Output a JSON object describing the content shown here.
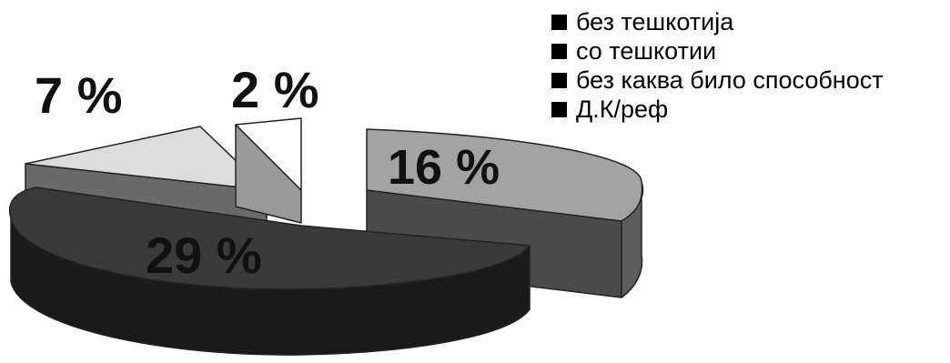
{
  "chart_data": {
    "type": "pie",
    "style": "3d-exploded",
    "slices": [
      {
        "label": "без тешкотија",
        "value": 16,
        "value_label": "16 %",
        "color": "#a3a3a3",
        "side_color": "#5d5d5d"
      },
      {
        "label": "со тешкотии",
        "value": 29,
        "value_label": "29 %",
        "color": "#3a3a3a",
        "side_color": "#1a1a1a"
      },
      {
        "label": "без каква било способност",
        "value": 7,
        "value_label": "7 %",
        "color": "#dcdcdc",
        "side_color": "#6a6a6a"
      },
      {
        "label": "Д.К/реф",
        "value": 2,
        "value_label": "2 %",
        "color": "#ffffff",
        "side_color": "#9a9a9a"
      }
    ],
    "legend": {
      "position": "top-right",
      "marker_color": "#000000",
      "items": [
        "без тешкотија",
        "со тешкотии",
        "без каква било способност",
        "Д.К/реф"
      ]
    }
  }
}
